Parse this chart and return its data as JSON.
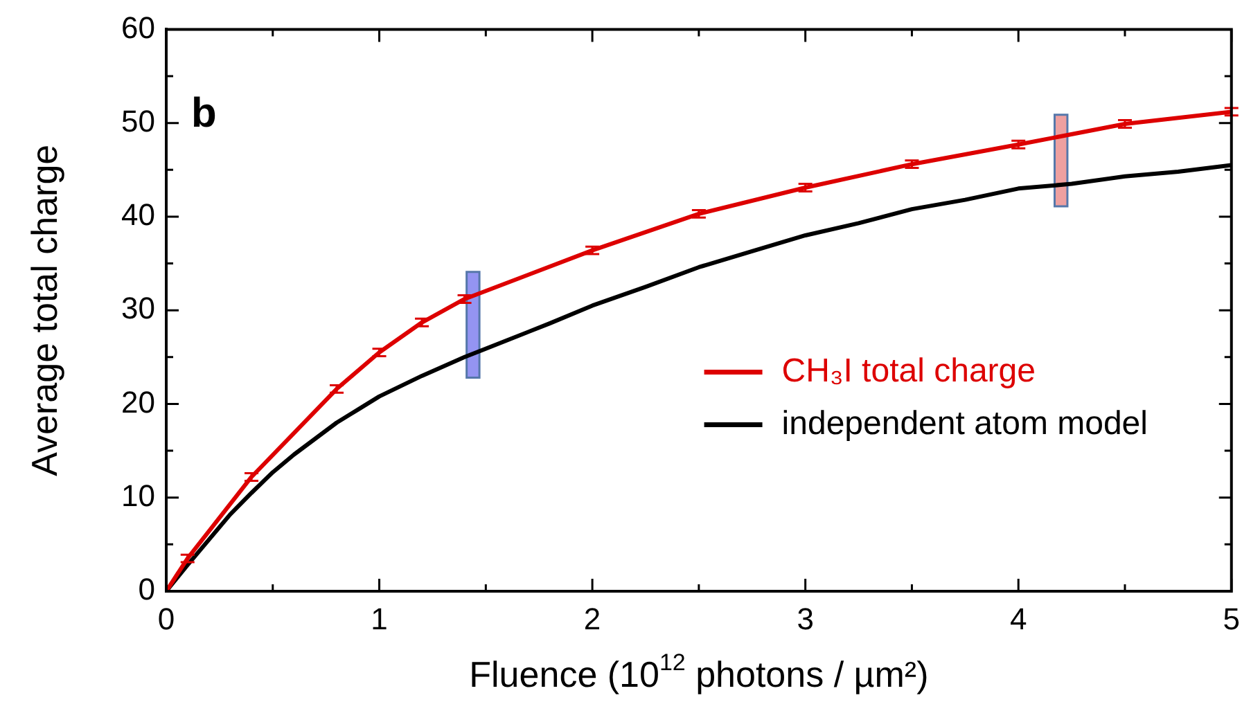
{
  "chart_data": {
    "type": "line",
    "xlabel": "Fluence (10$^{12}$ photons / µm²)",
    "ylabel": "Average total charge",
    "annotations": [
      "b"
    ],
    "xlim": [
      0,
      5
    ],
    "ylim": [
      0,
      60
    ],
    "xticks": [
      0,
      {
        "value": 0.5,
        "label": null
      },
      1,
      {
        "value": 1.5,
        "label": null
      },
      2,
      {
        "value": 2.5,
        "label": null
      },
      3,
      {
        "value": 3.5,
        "label": null
      },
      4,
      {
        "value": 4.5,
        "label": null
      },
      5
    ],
    "yticks": [
      0,
      {
        "value": 5,
        "label": null
      },
      10,
      {
        "value": 15,
        "label": null
      },
      20,
      {
        "value": 25,
        "label": null
      },
      30,
      {
        "value": 35,
        "label": null
      },
      40,
      {
        "value": 45,
        "label": null
      },
      50,
      {
        "value": 55,
        "label": null
      },
      60
    ],
    "grid": false,
    "legend": "right",
    "marker": "none",
    "line_style": "solid",
    "bands": [
      {
        "axis": "x",
        "from": 1.41,
        "to": 1.47,
        "color": "#7070ee"
      },
      {
        "axis": "x",
        "from": 4.17,
        "to": 4.23,
        "color": "#e88080"
      }
    ],
    "series": [
      {
        "name": "CH₃I total charge",
        "color": "#dd0000",
        "x": [
          0,
          0.1,
          0.4,
          0.8,
          1.0,
          1.2,
          1.4,
          2.0,
          2.5,
          3.0,
          3.5,
          4.0,
          4.5,
          5.0
        ],
        "values": [
          0,
          3.5,
          12.2,
          21.6,
          25.5,
          28.7,
          31.2,
          36.4,
          40.3,
          43.1,
          45.6,
          47.7,
          49.9,
          51.2
        ],
        "errors": [
          null,
          0.4,
          0.4,
          0.4,
          0.4,
          0.4,
          0.4,
          0.4,
          0.4,
          0.4,
          0.4,
          0.4,
          0.4,
          0.4
        ]
      },
      {
        "name": "independent atom model",
        "color": "#000000",
        "x": [
          0,
          0.1,
          0.2,
          0.3,
          0.4,
          0.5,
          0.6,
          0.7,
          0.8,
          0.9,
          1.0,
          1.2,
          1.4,
          1.6,
          1.8,
          2.0,
          2.25,
          2.5,
          2.75,
          3.0,
          3.25,
          3.5,
          3.75,
          4.0,
          4.25,
          4.5,
          4.75,
          5.0
        ],
        "values": [
          0,
          2.8,
          5.5,
          8.2,
          10.5,
          12.7,
          14.6,
          16.3,
          18.0,
          19.4,
          20.8,
          23.0,
          25.0,
          26.8,
          28.6,
          30.5,
          32.5,
          34.6,
          36.3,
          38.0,
          39.3,
          40.8,
          41.8,
          43.0,
          43.5,
          44.3,
          44.8,
          45.5
        ]
      }
    ]
  }
}
